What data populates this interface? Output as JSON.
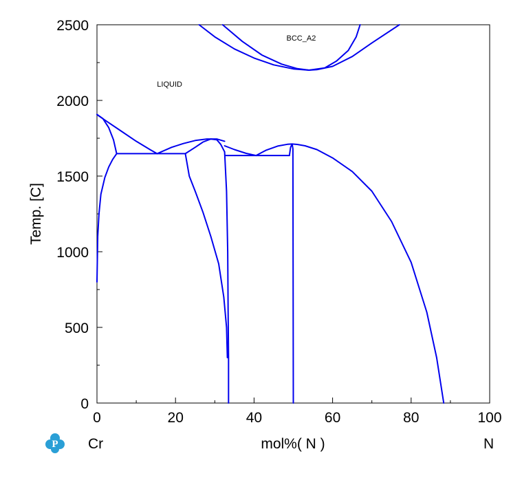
{
  "chart_data": {
    "type": "line",
    "title": "",
    "xlabel": "mol%( N )",
    "ylabel": "Temp. [C]",
    "xlim": [
      0,
      100
    ],
    "ylim": [
      0,
      2500
    ],
    "x_ticks": [
      "0",
      "20",
      "40",
      "60",
      "80",
      "100"
    ],
    "y_ticks": [
      "0",
      "500",
      "1000",
      "1500",
      "2000",
      "2500"
    ],
    "left_component": "Cr",
    "right_component": "N",
    "grid": false,
    "line_color": "#0000ee",
    "region_labels": [
      {
        "text": "LIQUID",
        "x": 18.5,
        "y": 2090
      },
      {
        "text": "BCC_A2",
        "x": 52,
        "y": 2395
      }
    ],
    "series": [
      {
        "points": [
          [
            0,
            1907
          ],
          [
            2,
            1870
          ],
          [
            6,
            1800
          ],
          [
            10,
            1730
          ],
          [
            13.5,
            1675
          ],
          [
            15.3,
            1648
          ]
        ]
      },
      {
        "points": [
          [
            0,
            1907
          ],
          [
            1.5,
            1880
          ],
          [
            3,
            1820
          ],
          [
            4.2,
            1740
          ],
          [
            5,
            1648
          ]
        ]
      },
      {
        "points": [
          [
            5,
            1648
          ],
          [
            4,
            1610
          ],
          [
            3,
            1560
          ],
          [
            2,
            1490
          ],
          [
            1,
            1380
          ],
          [
            0.5,
            1250
          ],
          [
            0.2,
            1100
          ],
          [
            0,
            800
          ]
        ]
      },
      {
        "points": [
          [
            5,
            1648
          ],
          [
            22.5,
            1648
          ]
        ]
      },
      {
        "points": [
          [
            15.3,
            1648
          ],
          [
            19,
            1690
          ],
          [
            22,
            1715
          ],
          [
            25,
            1735
          ],
          [
            28,
            1745
          ],
          [
            30.5,
            1745
          ],
          [
            32.5,
            1730
          ]
        ]
      },
      {
        "points": [
          [
            22.5,
            1648
          ],
          [
            25,
            1690
          ],
          [
            27,
            1725
          ],
          [
            29,
            1745
          ],
          [
            30.5,
            1740
          ],
          [
            31.5,
            1710
          ],
          [
            32.5,
            1660
          ]
        ]
      },
      {
        "points": [
          [
            22.5,
            1648
          ],
          [
            23.5,
            1500
          ],
          [
            25,
            1400
          ],
          [
            27,
            1260
          ],
          [
            29,
            1100
          ],
          [
            31,
            920
          ],
          [
            32.3,
            700
          ],
          [
            33,
            500
          ],
          [
            33.2,
            300
          ]
        ]
      },
      {
        "points": [
          [
            32.5,
            1660
          ],
          [
            33,
            1400
          ],
          [
            33.3,
            1000
          ],
          [
            33.4,
            600
          ],
          [
            33.5,
            300
          ],
          [
            33.5,
            0
          ]
        ]
      },
      {
        "points": [
          [
            32.5,
            1700
          ],
          [
            35,
            1675
          ],
          [
            38,
            1650
          ],
          [
            40.5,
            1636
          ]
        ]
      },
      {
        "points": [
          [
            32.8,
            1636
          ],
          [
            49,
            1636
          ]
        ]
      },
      {
        "points": [
          [
            40.5,
            1636
          ],
          [
            43,
            1670
          ],
          [
            46,
            1698
          ],
          [
            48.5,
            1710
          ],
          [
            49.7,
            1712
          ]
        ]
      },
      {
        "points": [
          [
            49,
            1636
          ],
          [
            49.3,
            1690
          ],
          [
            49.7,
            1712
          ],
          [
            49.9,
            1680
          ],
          [
            50,
            0
          ]
        ]
      },
      {
        "points": [
          [
            49.7,
            1712
          ],
          [
            51,
            1709
          ],
          [
            53,
            1700
          ],
          [
            56,
            1675
          ],
          [
            60,
            1620
          ],
          [
            65,
            1530
          ],
          [
            70,
            1400
          ],
          [
            75,
            1200
          ],
          [
            80,
            930
          ],
          [
            84,
            600
          ],
          [
            86.5,
            300
          ],
          [
            88.3,
            0
          ]
        ]
      },
      {
        "points": [
          [
            26,
            2500
          ],
          [
            30,
            2420
          ],
          [
            35,
            2340
          ],
          [
            40,
            2280
          ],
          [
            45,
            2235
          ],
          [
            50,
            2208
          ],
          [
            54,
            2200
          ],
          [
            56,
            2203
          ],
          [
            60,
            2225
          ],
          [
            65,
            2290
          ],
          [
            70,
            2380
          ],
          [
            77,
            2500
          ]
        ]
      },
      {
        "points": [
          [
            32,
            2500
          ],
          [
            37,
            2390
          ],
          [
            42,
            2300
          ],
          [
            47,
            2240
          ],
          [
            51,
            2210
          ],
          [
            54,
            2200
          ]
        ]
      },
      {
        "points": [
          [
            54,
            2200
          ],
          [
            58,
            2215
          ],
          [
            61,
            2260
          ],
          [
            64,
            2330
          ],
          [
            66,
            2420
          ],
          [
            67,
            2500
          ]
        ]
      }
    ]
  }
}
